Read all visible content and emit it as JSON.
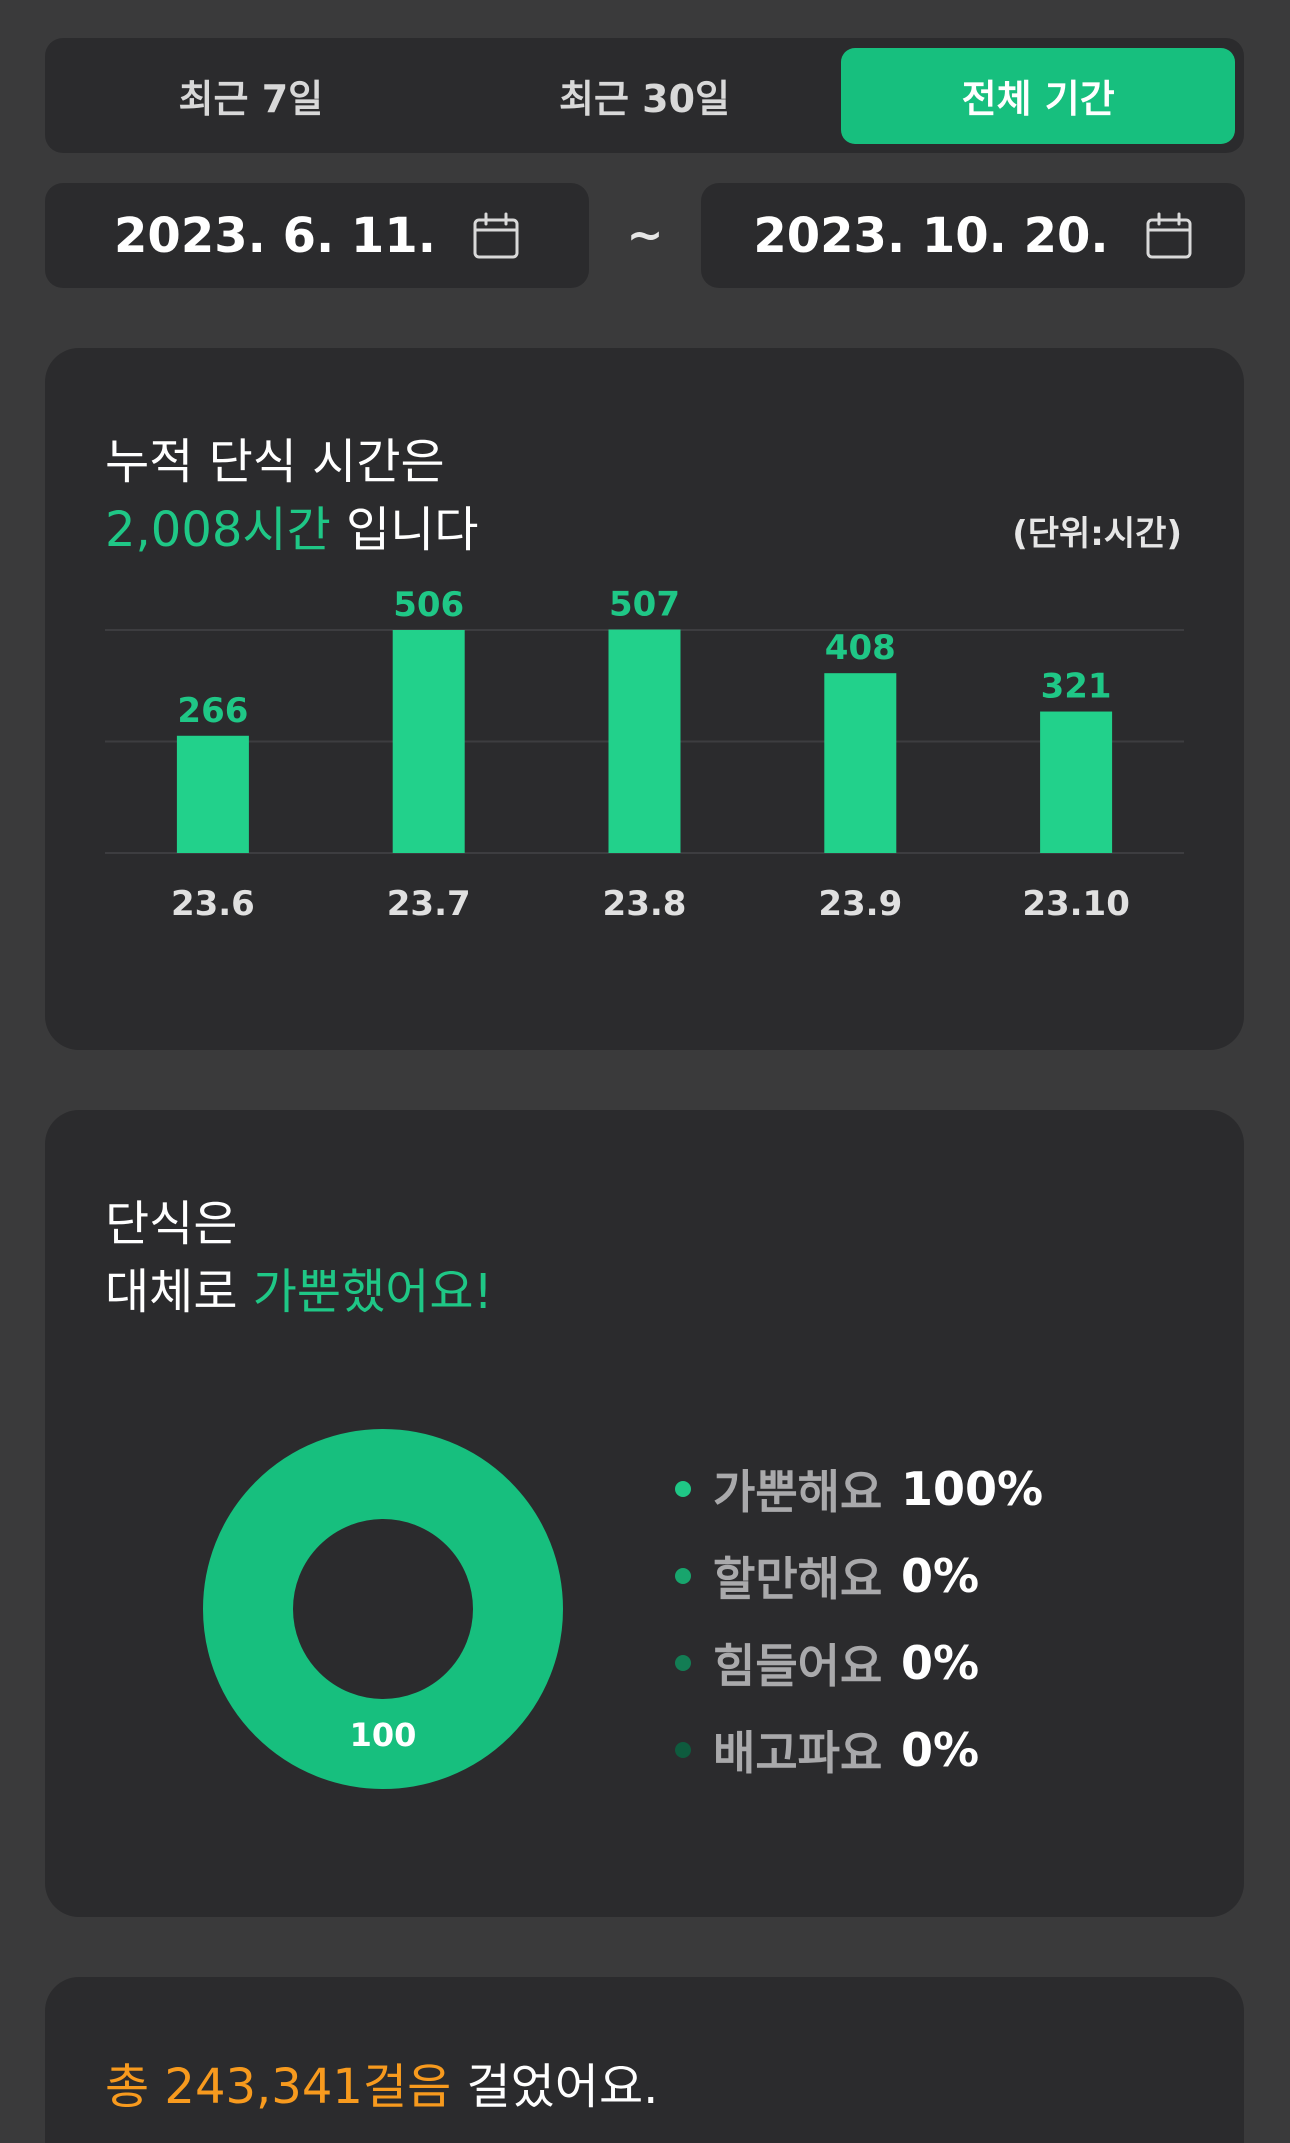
{
  "period_tabs": [
    {
      "label": "최근 7일",
      "active": false
    },
    {
      "label": "최근 30일",
      "active": false
    },
    {
      "label": "전체 기간",
      "active": true
    }
  ],
  "date_range": {
    "start": "2023. 6. 11.",
    "separator": "~",
    "end": "2023. 10. 20.",
    "icon": "calendar-icon"
  },
  "fasting_card": {
    "line1": "누적 단식 시간은",
    "highlight": "2,008시간",
    "line2_suffix": " 입니다",
    "unit_label": "(단위:시간)"
  },
  "chart_data": {
    "type": "bar",
    "categories": [
      "23.6",
      "23.7",
      "23.8",
      "23.9",
      "23.10"
    ],
    "values": [
      266,
      506,
      507,
      408,
      321
    ],
    "ylim": [
      0,
      506
    ],
    "data_labels": [
      "266",
      "506",
      "507",
      "408",
      "321"
    ],
    "grid": true,
    "bar_color": "#22d18b"
  },
  "feeling_card": {
    "line1": "단식은",
    "line2_prefix": "대체로 ",
    "highlight": "가뿐했어요!",
    "donut_center_label": "100",
    "legend": [
      {
        "label": "가뿐해요",
        "value": "100%",
        "color": "#1fc786"
      },
      {
        "label": "할만해요",
        "value": "0%",
        "color": "#18a56d"
      },
      {
        "label": "힘들어요",
        "value": "0%",
        "color": "#137d54"
      },
      {
        "label": "배고파요",
        "value": "0%",
        "color": "#0e5b3e"
      }
    ],
    "donut_color": "#17bf7e"
  },
  "steps_card": {
    "prefix": "총 ",
    "highlight": "243,341걸음",
    "suffix": " 걸었어요."
  },
  "colors": {
    "background": "#3a3a3b",
    "card": "#2b2b2d",
    "accent_green": "#1fc786",
    "accent_orange": "#f79a1e"
  }
}
